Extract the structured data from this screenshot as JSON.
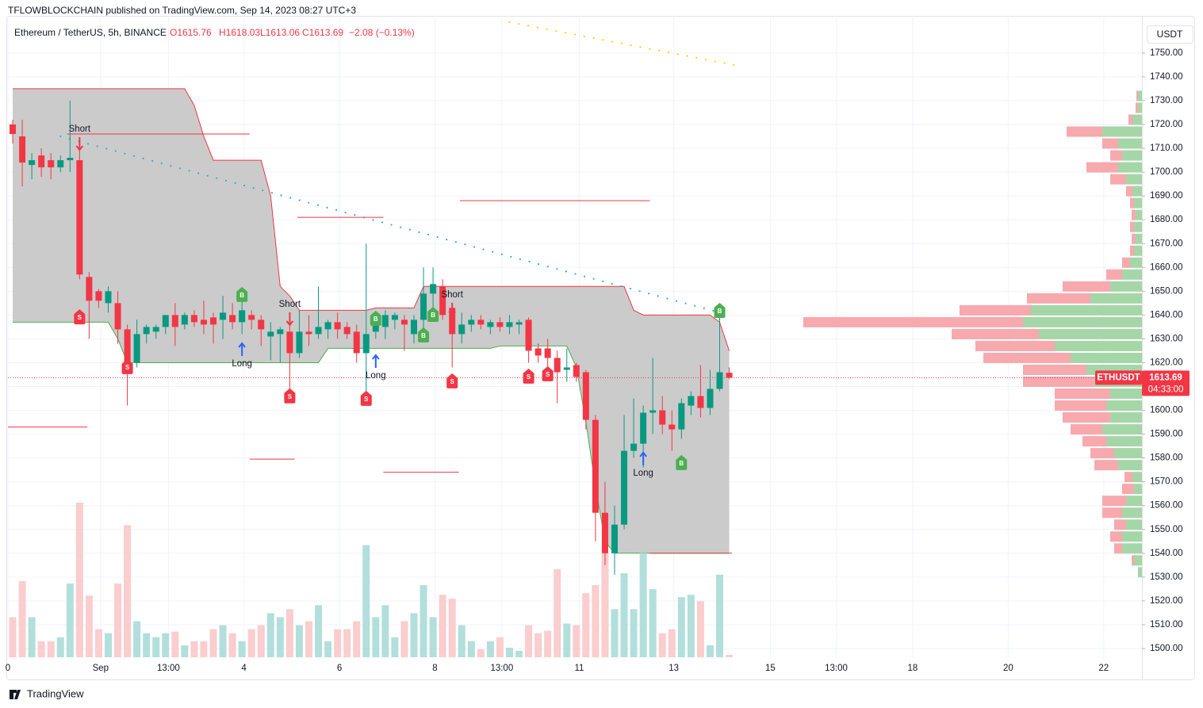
{
  "header": {
    "publisher": "TFLOWBLOCKCHAIN published on TradingView.com, Sep 14, 2023 08:27 UTC+3",
    "symbol": "Ethereum / TetherUS, 5h, BINANCE",
    "open": "O1615.76",
    "high": "H1618.03",
    "low": "L1613.06",
    "close": "C1613.69",
    "change": "−2.08 (−0.13%)",
    "currency": "USDT",
    "brand": "TradingView"
  },
  "chart_data": {
    "type": "candlestick",
    "up_color": "#089981",
    "down_color": "#f23645",
    "volume_up_color": "#b2dfdb",
    "volume_down_color": "#facdcf",
    "open": [
      1720,
      1715,
      1703,
      1707,
      1705,
      1702,
      1705,
      1705,
      1656,
      1650,
      1645,
      1645,
      1634,
      1620,
      1632,
      1633,
      1635,
      1640,
      1636,
      1640,
      1638,
      1639,
      1638,
      1640,
      1637,
      1640,
      1638,
      1631,
      1632,
      1633,
      1624,
      1633,
      1632,
      1634,
      1637,
      1635,
      1633,
      1624,
      1633,
      1635,
      1638,
      1638,
      1632,
      1638,
      1649,
      1652,
      1643,
      1632,
      1636,
      1638,
      1635,
      1637,
      1635,
      1636,
      1638,
      1626,
      1626,
      1622,
      1617,
      1619,
      1616,
      1596,
      1557,
      1540,
      1552,
      1583,
      1586,
      1599,
      1600,
      1594,
      1592,
      1602,
      1606,
      1601,
      1609,
      1615.76
    ],
    "high": [
      1722,
      1722,
      1708,
      1710,
      1708,
      1707,
      1730,
      1710,
      1658,
      1651,
      1652,
      1650,
      1636,
      1638,
      1636,
      1636,
      1640,
      1645,
      1641,
      1642,
      1646,
      1641,
      1648,
      1645,
      1648,
      1642,
      1640,
      1637,
      1635,
      1636,
      1642,
      1640,
      1652,
      1638,
      1641,
      1637,
      1636,
      1670,
      1640,
      1642,
      1641,
      1640,
      1640,
      1660,
      1660,
      1655,
      1645,
      1641,
      1640,
      1640,
      1638,
      1639,
      1640,
      1638,
      1639,
      1628,
      1630,
      1625,
      1626,
      1620,
      1617,
      1598,
      1570,
      1560,
      1598,
      1605,
      1602,
      1622,
      1606,
      1600,
      1605,
      1608,
      1619,
      1617,
      1641,
      1618.03
    ],
    "low": [
      1712,
      1694,
      1697,
      1698,
      1697,
      1700,
      1700,
      1655,
      1630,
      1643,
      1641,
      1628,
      1602,
      1618,
      1628,
      1630,
      1632,
      1627,
      1634,
      1635,
      1632,
      1628,
      1630,
      1634,
      1632,
      1634,
      1627,
      1621,
      1620,
      1605,
      1622,
      1627,
      1630,
      1630,
      1630,
      1630,
      1620,
      1608,
      1630,
      1630,
      1634,
      1625,
      1628,
      1632,
      1640,
      1638,
      1618,
      1628,
      1633,
      1634,
      1632,
      1633,
      1632,
      1632,
      1620,
      1620,
      1618,
      1603,
      1612,
      1612,
      1592,
      1545,
      1535,
      1531,
      1550,
      1580,
      1576,
      1590,
      1590,
      1583,
      1588,
      1598,
      1597,
      1598,
      1608,
      1613.06
    ],
    "close": [
      1716,
      1704,
      1705,
      1702,
      1702,
      1705,
      1706,
      1657,
      1646,
      1646,
      1650,
      1634,
      1620,
      1632,
      1635,
      1635,
      1640,
      1635,
      1640,
      1637,
      1636,
      1636,
      1641,
      1637,
      1642,
      1638,
      1634,
      1633,
      1634,
      1624,
      1633,
      1632,
      1635,
      1637,
      1634,
      1632,
      1624,
      1632,
      1637,
      1640,
      1640,
      1636,
      1638,
      1649,
      1653,
      1640,
      1632,
      1636,
      1638,
      1636,
      1637,
      1635,
      1637,
      1637,
      1625,
      1623,
      1622,
      1616,
      1618,
      1614,
      1596,
      1557,
      1540,
      1552,
      1583,
      1586,
      1599,
      1600,
      1594,
      1592,
      1603,
      1606,
      1601,
      1609,
      1616,
      1613.69
    ],
    "volume": [
      50,
      95,
      50,
      20,
      20,
      25,
      92,
      193,
      77,
      35,
      30,
      92,
      165,
      45,
      30,
      25,
      30,
      32,
      15,
      20,
      20,
      35,
      40,
      30,
      20,
      35,
      40,
      55,
      50,
      60,
      40,
      45,
      65,
      20,
      35,
      35,
      45,
      140,
      50,
      65,
      25,
      45,
      55,
      90,
      50,
      78,
      73,
      40,
      20,
      10,
      20,
      25,
      12,
      8,
      40,
      30,
      33,
      110,
      42,
      40,
      80,
      90,
      130,
      60,
      105,
      60,
      130,
      85,
      30,
      35,
      75,
      78,
      70,
      15,
      103,
      3
    ],
    "band": {
      "fill": "#c8c8c8",
      "upper_color": "#f23645",
      "lower_color": "#4caf50",
      "upper": [
        1735,
        1735,
        1735,
        1735,
        1735,
        1735,
        1735,
        1735,
        1735,
        1735,
        1735,
        1735,
        1735,
        1735,
        1735,
        1735,
        1735,
        1735,
        1735,
        1728,
        1715,
        1705,
        1705,
        1705,
        1705,
        1705,
        1705,
        1690,
        1652,
        1648,
        1642,
        1642,
        1642,
        1642,
        1642,
        1642,
        1642,
        1642,
        1643,
        1643,
        1643,
        1643,
        1643,
        1652,
        1652,
        1652,
        1652,
        1652,
        1652,
        1652,
        1652,
        1652,
        1652,
        1652,
        1652,
        1652,
        1652,
        1652,
        1652,
        1652,
        1652,
        1652,
        1652,
        1652,
        1652,
        1642,
        1640,
        1640,
        1640,
        1640,
        1640,
        1640,
        1640,
        1640,
        1637,
        1625
      ],
      "lower": [
        1637,
        1637,
        1637,
        1637,
        1637,
        1637,
        1637,
        1637,
        1637,
        1637,
        1637,
        1630,
        1620,
        1620,
        1620,
        1620,
        1620,
        1620,
        1620,
        1620,
        1620,
        1620,
        1620,
        1620,
        1620,
        1620,
        1620,
        1620,
        1620,
        1620,
        1620,
        1620,
        1620,
        1626,
        1626,
        1626,
        1626,
        1626,
        1626,
        1626,
        1626,
        1626,
        1626,
        1626,
        1626,
        1626,
        1626,
        1626,
        1626,
        1626,
        1626,
        1627,
        1627,
        1627,
        1627,
        1627,
        1627,
        1627,
        1627,
        1618,
        1595,
        1568,
        1545,
        1540,
        1540,
        1540,
        1540,
        1540,
        1540,
        1540,
        1540,
        1540,
        1540,
        1540,
        1540,
        1540
      ]
    },
    "trends": [
      {
        "color": "#2ab0c5",
        "x": [
          5,
          75
        ],
        "values": [
          1715,
          1640
        ]
      },
      {
        "color": "#f5d300",
        "x": [
          52,
          75.5
        ],
        "values": [
          1763,
          1745
        ]
      }
    ],
    "levels": [
      {
        "x": [
          5.7,
          24.8
        ],
        "value": 1716
      },
      {
        "x": [
          29.8,
          38.8
        ],
        "value": 1681
      },
      {
        "x": [
          46.8,
          66.7
        ],
        "value": 1688
      },
      {
        "x": [
          -0.5,
          7.8
        ],
        "value": 1593
      },
      {
        "x": [
          24.8,
          29.5
        ],
        "value": 1579.5
      },
      {
        "x": [
          38.8,
          46.7
        ],
        "value": 1574
      },
      {
        "x": [
          66.7,
          75.3
        ],
        "value": 1540
      }
    ],
    "signals": [
      {
        "label": "Short",
        "index": 7,
        "price": 1718,
        "arrow": "down"
      },
      {
        "label": "Short",
        "index": 29,
        "price": 1644.5,
        "arrow": "down"
      },
      {
        "label": "Short",
        "index": 46,
        "price": 1648.5,
        "arrow": "down"
      },
      {
        "label": "Long",
        "index": 24,
        "price": 1619.5,
        "arrow": "up"
      },
      {
        "label": "Long",
        "index": 38,
        "price": 1614.5,
        "arrow": "up"
      },
      {
        "label": "Long",
        "index": 66,
        "price": 1573.6,
        "arrow": "up"
      }
    ],
    "markers": [
      {
        "text": "S",
        "index": 7,
        "price": 1639.1,
        "color": "#f23645"
      },
      {
        "text": "S",
        "index": 12,
        "price": 1618.2,
        "color": "#f23645"
      },
      {
        "text": "S",
        "index": 29,
        "price": 1605.9,
        "color": "#f23645"
      },
      {
        "text": "S",
        "index": 37,
        "price": 1604.9,
        "color": "#f23645"
      },
      {
        "text": "S",
        "index": 46,
        "price": 1612.2,
        "color": "#f23645"
      },
      {
        "text": "S",
        "index": 54,
        "price": 1614.2,
        "color": "#f23645"
      },
      {
        "text": "S",
        "index": 56,
        "price": 1615.2,
        "color": "#f23645"
      },
      {
        "text": "B",
        "index": 24,
        "price": 1648.5,
        "color": "#4caf50"
      },
      {
        "text": "B",
        "index": 38,
        "price": 1638.5,
        "color": "#4caf50"
      },
      {
        "text": "B",
        "index": 43,
        "price": 1631.5,
        "color": "#4caf50"
      },
      {
        "text": "B",
        "index": 44,
        "price": 1640.1,
        "color": "#4caf50"
      },
      {
        "text": "B",
        "index": 70,
        "price": 1577.9,
        "color": "#4caf50"
      },
      {
        "text": "B",
        "index": 74,
        "price": 1641.8,
        "color": "#4caf50"
      }
    ],
    "profile": {
      "up_color": "#a5d6a7",
      "down_color": "#f7a9ad",
      "price": [
        1532,
        1537,
        1542,
        1547,
        1552,
        1557,
        1562,
        1567,
        1572,
        1577,
        1582,
        1587,
        1592,
        1597,
        1602,
        1607,
        1612,
        1617,
        1622,
        1627,
        1632,
        1637,
        1642,
        1647,
        1652,
        1657,
        1662,
        1667,
        1672,
        1677,
        1682,
        1687,
        1692,
        1697,
        1702,
        1707,
        1712,
        1717,
        1722,
        1727,
        1732
      ],
      "up": [
        5,
        10,
        25,
        25,
        20,
        25,
        20,
        10,
        12,
        30,
        35,
        45,
        50,
        40,
        45,
        40,
        60,
        70,
        90,
        110,
        130,
        150,
        140,
        65,
        40,
        25,
        15,
        10,
        8,
        10,
        8,
        10,
        12,
        20,
        30,
        25,
        30,
        50,
        12,
        5,
        5
      ],
      "down": [
        0,
        3,
        10,
        15,
        15,
        25,
        30,
        15,
        10,
        30,
        30,
        30,
        40,
        60,
        65,
        70,
        90,
        80,
        110,
        100,
        110,
        277,
        90,
        80,
        60,
        20,
        10,
        5,
        5,
        5,
        5,
        5,
        8,
        20,
        40,
        15,
        20,
        45,
        5,
        3,
        2
      ]
    },
    "price_label": {
      "symbol": "ETHUSDT",
      "price": 1613.69,
      "countdown": "04:33:00",
      "color": "#f23645"
    },
    "xlim": [
      -0.5,
      118.2
    ],
    "ylim": [
      1496,
      1765.6
    ],
    "xticks": [
      {
        "value": -0.5,
        "label": "0"
      },
      {
        "value": 9.2,
        "label": "Sep"
      },
      {
        "value": 16.3,
        "label": "13:00"
      },
      {
        "value": 24.2,
        "label": "4"
      },
      {
        "value": 34.2,
        "label": "6"
      },
      {
        "value": 44.2,
        "label": "8"
      },
      {
        "value": 51.2,
        "label": "13:00"
      },
      {
        "value": 59.3,
        "label": "11"
      },
      {
        "value": 69.2,
        "label": "13"
      },
      {
        "value": 79.3,
        "label": "15"
      },
      {
        "value": 86.2,
        "label": "13:00"
      },
      {
        "value": 94.2,
        "label": "18"
      },
      {
        "value": 104.2,
        "label": "20"
      },
      {
        "value": 114.2,
        "label": "22"
      }
    ],
    "yticks": [
      {
        "value": 1500,
        "label": "1500.00"
      },
      {
        "value": 1510,
        "label": "1510.00"
      },
      {
        "value": 1520,
        "label": "1520.00"
      },
      {
        "value": 1530,
        "label": "1530.00"
      },
      {
        "value": 1540,
        "label": "1540.00"
      },
      {
        "value": 1550,
        "label": "1550.00"
      },
      {
        "value": 1560,
        "label": "1560.00"
      },
      {
        "value": 1570,
        "label": "1570.00"
      },
      {
        "value": 1580,
        "label": "1580.00"
      },
      {
        "value": 1590,
        "label": "1590.00"
      },
      {
        "value": 1600,
        "label": "1600.00"
      },
      {
        "value": 1610,
        "label": "1610.00"
      },
      {
        "value": 1620,
        "label": "1620.00"
      },
      {
        "value": 1630,
        "label": "1630.00"
      },
      {
        "value": 1640,
        "label": "1640.00"
      },
      {
        "value": 1650,
        "label": "1650.00"
      },
      {
        "value": 1660,
        "label": "1660.00"
      },
      {
        "value": 1670,
        "label": "1670.00"
      },
      {
        "value": 1680,
        "label": "1680.00"
      },
      {
        "value": 1690,
        "label": "1690.00"
      },
      {
        "value": 1700,
        "label": "1700.00"
      },
      {
        "value": 1710,
        "label": "1710.00"
      },
      {
        "value": 1720,
        "label": "1720.00"
      },
      {
        "value": 1730,
        "label": "1730.00"
      },
      {
        "value": 1740,
        "label": "1740.00"
      },
      {
        "value": 1750,
        "label": "1750.00"
      }
    ],
    "grid": true
  }
}
